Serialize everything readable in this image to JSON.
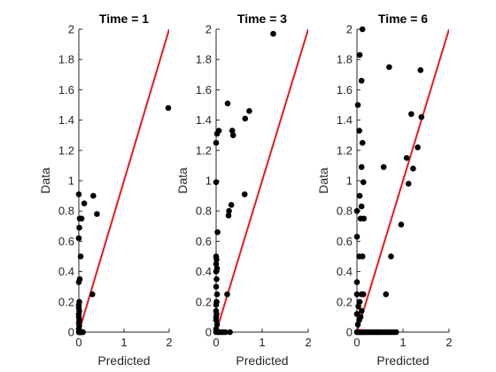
{
  "chart_data": [
    {
      "type": "scatter",
      "title": "Time = 1",
      "xlabel": "Predicted",
      "ylabel": "Data",
      "xlim": [
        0,
        2
      ],
      "ylim": [
        0,
        2
      ],
      "xticks": [
        "0",
        "1",
        "2"
      ],
      "yticks": [
        "0",
        "0.2",
        "0.4",
        "0.6",
        "0.8",
        "1",
        "1.2",
        "1.4",
        "1.6",
        "1.8",
        "2"
      ],
      "grid": false,
      "marker_color": "#000000",
      "reference_line": {
        "from": [
          0,
          0
        ],
        "to": [
          2,
          2
        ],
        "color": "#e31a1c"
      },
      "points": [
        [
          0.0,
          0.0
        ],
        [
          0.01,
          0.0
        ],
        [
          0.02,
          0.0
        ],
        [
          0.03,
          0.0
        ],
        [
          0.05,
          0.0
        ],
        [
          0.07,
          0.0
        ],
        [
          0.09,
          0.0
        ],
        [
          0.0,
          0.02
        ],
        [
          0.01,
          0.04
        ],
        [
          0.0,
          0.06
        ],
        [
          0.01,
          0.08
        ],
        [
          0.0,
          0.1
        ],
        [
          0.0,
          0.12
        ],
        [
          0.01,
          0.14
        ],
        [
          0.0,
          0.16
        ],
        [
          0.0,
          0.18
        ],
        [
          0.01,
          0.2
        ],
        [
          0.0,
          0.33
        ],
        [
          0.02,
          0.35
        ],
        [
          0.04,
          0.5
        ],
        [
          0.0,
          0.62
        ],
        [
          0.01,
          0.69
        ],
        [
          0.02,
          0.75
        ],
        [
          0.06,
          0.75
        ],
        [
          0.0,
          0.91
        ],
        [
          0.12,
          0.85
        ],
        [
          0.32,
          0.9
        ],
        [
          0.4,
          0.78
        ],
        [
          0.3,
          0.25
        ],
        [
          1.98,
          1.48
        ]
      ]
    },
    {
      "type": "scatter",
      "title": "Time = 3",
      "xlabel": "Predicted",
      "ylabel": "Data",
      "xlim": [
        0,
        2
      ],
      "ylim": [
        0,
        2
      ],
      "xticks": [
        "0",
        "1",
        "2"
      ],
      "yticks": [
        "0",
        "0.2",
        "0.4",
        "0.6",
        "0.8",
        "1",
        "1.2",
        "1.4",
        "1.6",
        "1.8",
        "2"
      ],
      "grid": false,
      "marker_color": "#000000",
      "reference_line": {
        "from": [
          0,
          0
        ],
        "to": [
          2,
          2
        ],
        "color": "#e31a1c"
      },
      "points": [
        [
          0.0,
          0.0
        ],
        [
          0.05,
          0.0
        ],
        [
          0.1,
          0.0
        ],
        [
          0.15,
          0.0
        ],
        [
          0.2,
          0.0
        ],
        [
          0.3,
          0.0
        ],
        [
          0.0,
          0.02
        ],
        [
          0.02,
          0.05
        ],
        [
          0.0,
          0.08
        ],
        [
          0.0,
          0.1
        ],
        [
          0.01,
          0.12
        ],
        [
          0.0,
          0.14
        ],
        [
          0.0,
          0.18
        ],
        [
          0.01,
          0.2
        ],
        [
          0.02,
          0.25
        ],
        [
          0.0,
          0.3
        ],
        [
          0.01,
          0.35
        ],
        [
          0.0,
          0.4
        ],
        [
          0.02,
          0.42
        ],
        [
          0.0,
          0.45
        ],
        [
          0.01,
          0.48
        ],
        [
          0.0,
          0.5
        ],
        [
          0.03,
          0.66
        ],
        [
          0.0,
          0.99
        ],
        [
          0.0,
          1.25
        ],
        [
          0.02,
          1.31
        ],
        [
          0.06,
          1.33
        ],
        [
          0.25,
          1.51
        ],
        [
          0.35,
          1.33
        ],
        [
          0.37,
          1.3
        ],
        [
          0.33,
          0.84
        ],
        [
          0.28,
          0.8
        ],
        [
          0.27,
          0.77
        ],
        [
          0.24,
          0.25
        ],
        [
          0.63,
          1.41
        ],
        [
          0.72,
          1.46
        ],
        [
          0.62,
          0.91
        ],
        [
          1.24,
          1.97
        ]
      ]
    },
    {
      "type": "scatter",
      "title": "Time = 6",
      "xlabel": "Predicted",
      "ylabel": "Data",
      "xlim": [
        0,
        2
      ],
      "ylim": [
        0,
        2
      ],
      "xticks": [
        "0",
        "1",
        "2"
      ],
      "yticks": [
        "0",
        "0.2",
        "0.4",
        "0.6",
        "0.8",
        "1",
        "1.2",
        "1.4",
        "1.6",
        "1.8",
        "2"
      ],
      "grid": false,
      "marker_color": "#000000",
      "reference_line": {
        "from": [
          0,
          0
        ],
        "to": [
          2,
          2
        ],
        "color": "#e31a1c"
      },
      "points": [
        [
          0.0,
          0.0
        ],
        [
          0.03,
          0.0
        ],
        [
          0.06,
          0.0
        ],
        [
          0.09,
          0.0
        ],
        [
          0.12,
          0.0
        ],
        [
          0.15,
          0.0
        ],
        [
          0.18,
          0.0
        ],
        [
          0.22,
          0.0
        ],
        [
          0.26,
          0.0
        ],
        [
          0.3,
          0.0
        ],
        [
          0.34,
          0.0
        ],
        [
          0.38,
          0.0
        ],
        [
          0.42,
          0.0
        ],
        [
          0.46,
          0.0
        ],
        [
          0.5,
          0.0
        ],
        [
          0.55,
          0.0
        ],
        [
          0.6,
          0.0
        ],
        [
          0.65,
          0.0
        ],
        [
          0.7,
          0.0
        ],
        [
          0.75,
          0.0
        ],
        [
          0.8,
          0.0
        ],
        [
          0.85,
          0.0
        ],
        [
          0.02,
          0.05
        ],
        [
          0.05,
          0.08
        ],
        [
          0.08,
          0.1
        ],
        [
          0.0,
          0.12
        ],
        [
          0.1,
          0.14
        ],
        [
          0.03,
          0.17
        ],
        [
          0.06,
          0.2
        ],
        [
          0.0,
          0.25
        ],
        [
          0.1,
          0.25
        ],
        [
          0.14,
          0.25
        ],
        [
          0.0,
          0.33
        ],
        [
          0.05,
          0.5
        ],
        [
          0.12,
          0.5
        ],
        [
          0.0,
          0.63
        ],
        [
          0.08,
          0.75
        ],
        [
          0.15,
          0.75
        ],
        [
          0.0,
          0.8
        ],
        [
          0.1,
          0.83
        ],
        [
          0.06,
          0.9
        ],
        [
          0.14,
          0.99
        ],
        [
          0.1,
          1.09
        ],
        [
          0.12,
          1.25
        ],
        [
          0.05,
          1.33
        ],
        [
          0.02,
          1.5
        ],
        [
          0.1,
          1.66
        ],
        [
          0.06,
          1.83
        ],
        [
          0.12,
          2.0
        ],
        [
          0.7,
          1.75
        ],
        [
          1.38,
          1.73
        ],
        [
          0.58,
          1.09
        ],
        [
          1.18,
          1.44
        ],
        [
          1.4,
          1.42
        ],
        [
          1.32,
          1.22
        ],
        [
          1.22,
          1.08
        ],
        [
          1.08,
          1.15
        ],
        [
          1.12,
          0.98
        ],
        [
          0.96,
          0.71
        ],
        [
          0.74,
          0.5
        ],
        [
          0.63,
          0.25
        ]
      ]
    }
  ]
}
